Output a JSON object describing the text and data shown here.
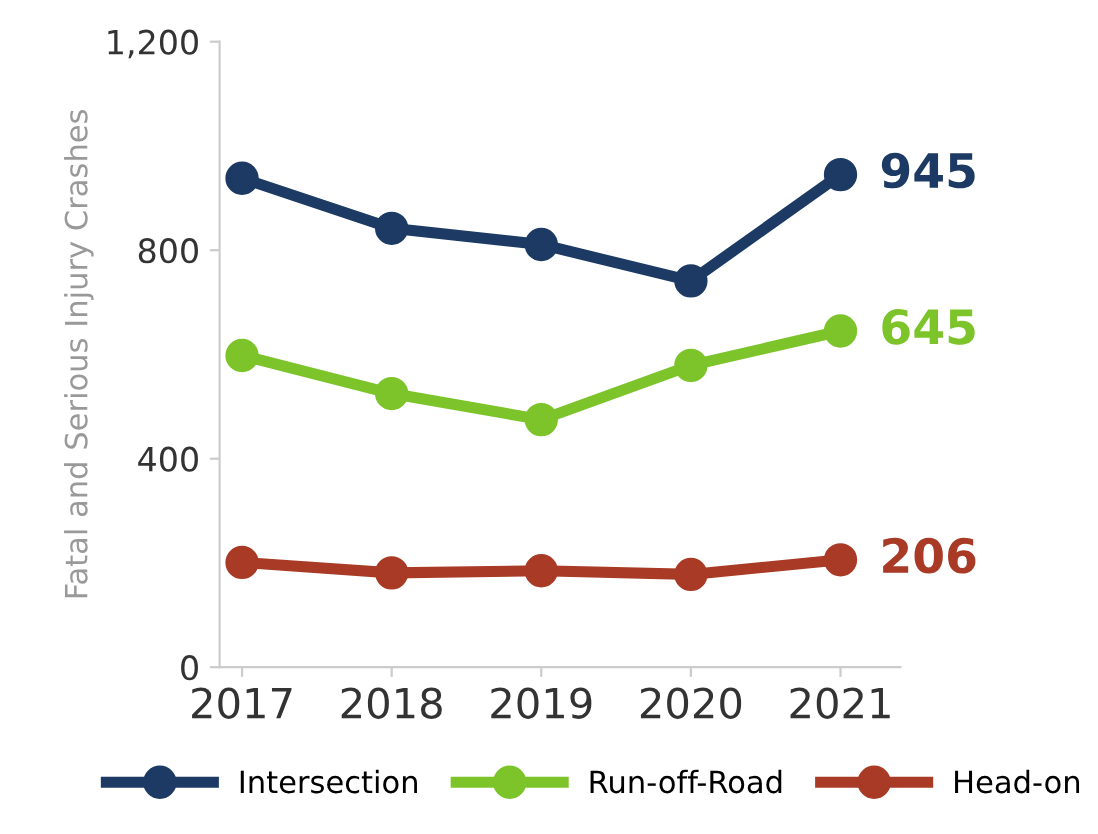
{
  "chart_data": {
    "type": "line",
    "ylabel": "Fatal and Serious Injury Crashes",
    "categories": [
      "2017",
      "2018",
      "2019",
      "2020",
      "2021"
    ],
    "series": [
      {
        "name": "Intersection",
        "color": "#1c3a63",
        "values": [
          938,
          842,
          811,
          741,
          945
        ]
      },
      {
        "name": "Run-off-Road",
        "color": "#7cc42a",
        "values": [
          598,
          525,
          475,
          579,
          645
        ]
      },
      {
        "name": "Head-on",
        "color": "#a83a26",
        "values": [
          201,
          181,
          185,
          178,
          206
        ]
      }
    ],
    "annotations": [
      {
        "text": "945",
        "x": "2021",
        "y": 945
      },
      {
        "text": "645",
        "x": "2021",
        "y": 645
      },
      {
        "text": "206",
        "x": "2021",
        "y": 206
      }
    ],
    "ylim": [
      0,
      1200
    ],
    "yticks": [
      0,
      400,
      800,
      {
        "value": 1200,
        "label": "1,200"
      }
    ],
    "grid": false,
    "legend": "bottom",
    "marker": "circle",
    "line_style": "solid"
  }
}
